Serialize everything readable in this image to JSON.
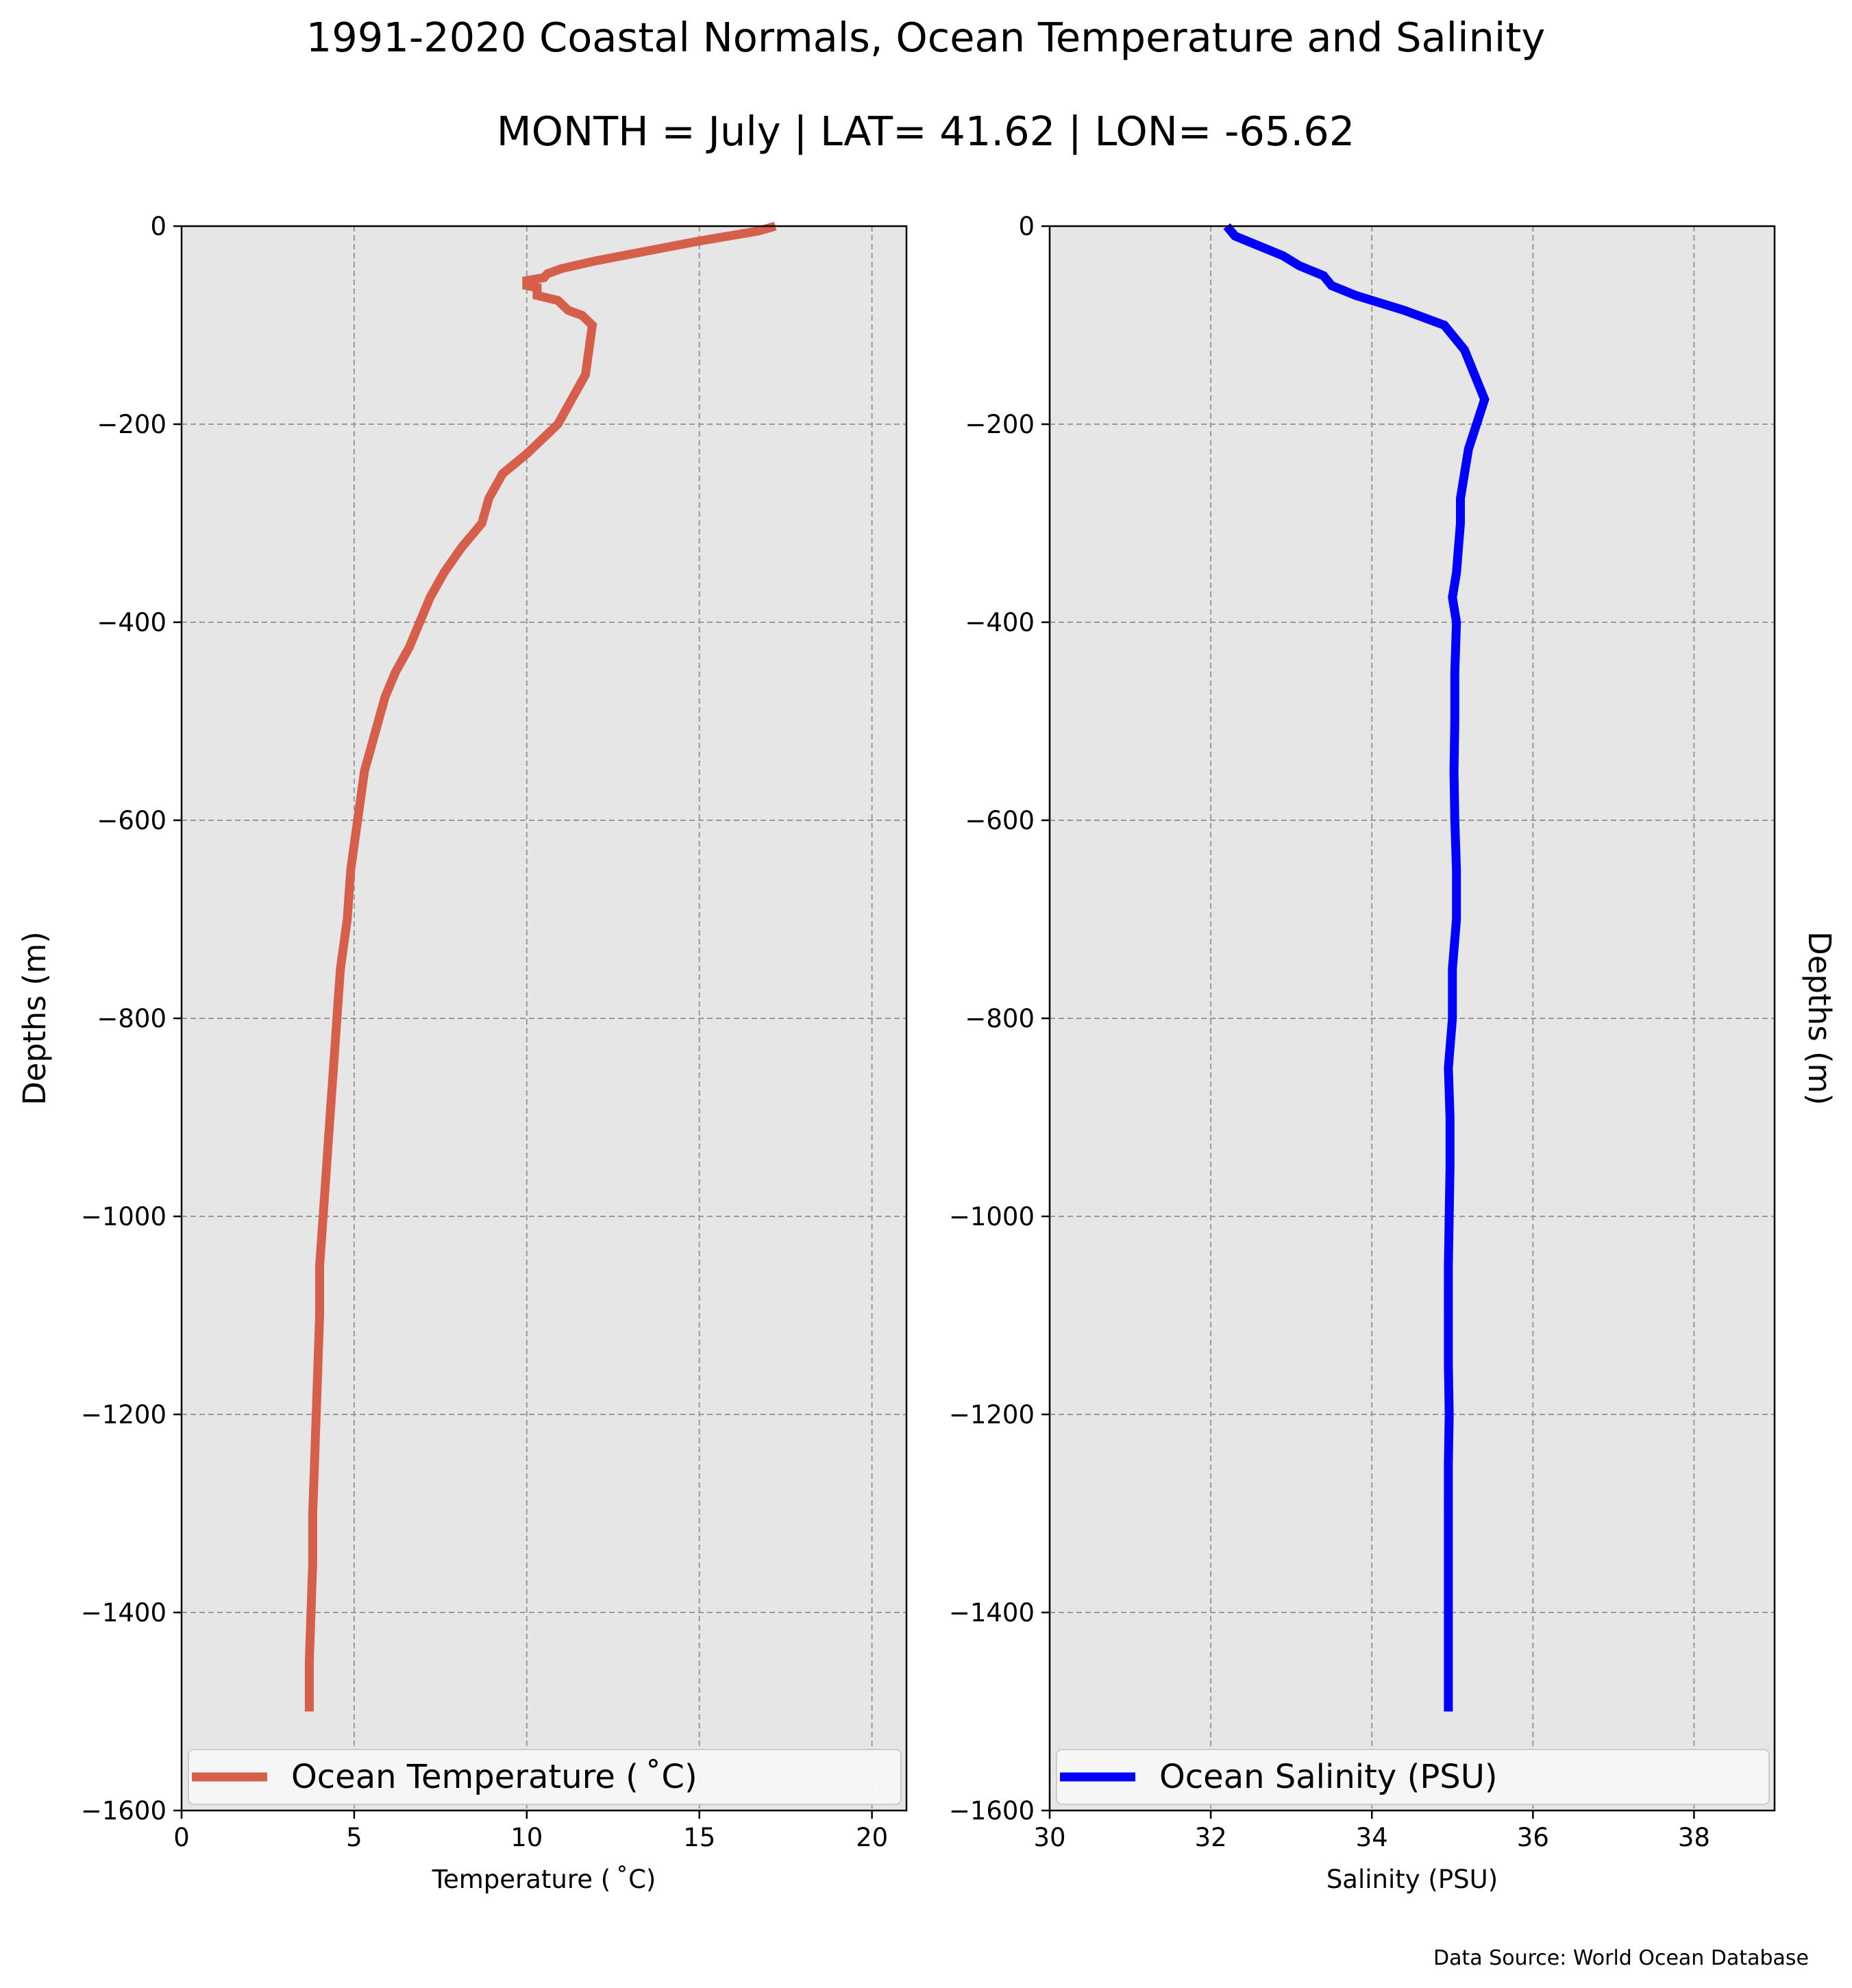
{
  "figure": {
    "title": "1991-2020 Coastal Normals, Ocean Temperature and Salinity",
    "subtitle": "MONTH = July | LAT= 41.62 | LON= -65.62",
    "source": "Data Source: World Ocean Database",
    "plot_background": "#e6e6e6"
  },
  "chart_data": [
    {
      "type": "line",
      "id": "temperature",
      "xlabel": "Temperature ($^\\circ$C)",
      "xlabel_display": "Temperature ( ˚C)",
      "ylabel": "Depths (m)",
      "xlim": [
        0,
        21
      ],
      "ylim": [
        -1600,
        0
      ],
      "xticks": [
        0,
        5,
        10,
        15,
        20
      ],
      "xtick_labels": [
        "0",
        "5",
        "10",
        "15",
        "20"
      ],
      "yticks": [
        0,
        -200,
        -400,
        -600,
        -800,
        -1000,
        -1200,
        -1400,
        -1600
      ],
      "ytick_labels": [
        "0",
        "−200",
        "−400",
        "−600",
        "−800",
        "−1000",
        "−1200",
        "−1400",
        "−1600"
      ],
      "grid": true,
      "legend_position": "lower-center",
      "series": [
        {
          "name": "Ocean Temperature ( ˚C)",
          "color": "#d65f4c",
          "points": [
            [
              17.2,
              0
            ],
            [
              16.7,
              -5
            ],
            [
              15.0,
              -15
            ],
            [
              13.5,
              -25
            ],
            [
              12.0,
              -35
            ],
            [
              11.0,
              -43
            ],
            [
              10.6,
              -48
            ],
            [
              10.5,
              -52
            ],
            [
              10.0,
              -55
            ],
            [
              10.0,
              -60
            ],
            [
              10.3,
              -62
            ],
            [
              10.3,
              -70
            ],
            [
              10.9,
              -75
            ],
            [
              11.2,
              -85
            ],
            [
              11.6,
              -90
            ],
            [
              11.9,
              -100
            ],
            [
              11.7,
              -150
            ],
            [
              11.3,
              -175
            ],
            [
              10.9,
              -200
            ],
            [
              10.0,
              -230
            ],
            [
              9.3,
              -250
            ],
            [
              8.9,
              -275
            ],
            [
              8.7,
              -300
            ],
            [
              8.1,
              -325
            ],
            [
              7.6,
              -350
            ],
            [
              7.2,
              -375
            ],
            [
              6.9,
              -400
            ],
            [
              6.6,
              -425
            ],
            [
              6.2,
              -450
            ],
            [
              5.9,
              -475
            ],
            [
              5.5,
              -525
            ],
            [
              5.3,
              -550
            ],
            [
              5.1,
              -600
            ],
            [
              4.9,
              -650
            ],
            [
              4.8,
              -700
            ],
            [
              4.6,
              -750
            ],
            [
              4.5,
              -800
            ],
            [
              4.4,
              -850
            ],
            [
              4.3,
              -900
            ],
            [
              4.2,
              -950
            ],
            [
              4.1,
              -1000
            ],
            [
              4.0,
              -1050
            ],
            [
              4.0,
              -1100
            ],
            [
              3.95,
              -1150
            ],
            [
              3.9,
              -1200
            ],
            [
              3.85,
              -1250
            ],
            [
              3.8,
              -1300
            ],
            [
              3.8,
              -1350
            ],
            [
              3.75,
              -1400
            ],
            [
              3.7,
              -1450
            ],
            [
              3.7,
              -1500
            ]
          ]
        }
      ]
    },
    {
      "type": "line",
      "id": "salinity",
      "xlabel": "Salinity (PSU)",
      "ylabel": "Depths (m)",
      "xlim": [
        30,
        39
      ],
      "ylim": [
        -1600,
        0
      ],
      "xticks": [
        30,
        32,
        34,
        36,
        38
      ],
      "xtick_labels": [
        "30",
        "32",
        "34",
        "36",
        "38"
      ],
      "yticks": [
        0,
        -200,
        -400,
        -600,
        -800,
        -1000,
        -1200,
        -1400,
        -1600
      ],
      "ytick_labels": [
        "0",
        "−200",
        "−400",
        "−600",
        "−800",
        "−1000",
        "−1200",
        "−1400",
        "−1600"
      ],
      "grid": true,
      "legend_position": "lower-center",
      "series": [
        {
          "name": "Ocean Salinity (PSU)",
          "color": "#0000ff",
          "points": [
            [
              32.2,
              0
            ],
            [
              32.3,
              -10
            ],
            [
              32.6,
              -20
            ],
            [
              32.9,
              -30
            ],
            [
              33.1,
              -40
            ],
            [
              33.4,
              -50
            ],
            [
              33.5,
              -60
            ],
            [
              33.8,
              -70
            ],
            [
              34.2,
              -80
            ],
            [
              34.4,
              -85
            ],
            [
              34.9,
              -100
            ],
            [
              35.15,
              -125
            ],
            [
              35.4,
              -175
            ],
            [
              35.2,
              -225
            ],
            [
              35.1,
              -275
            ],
            [
              35.1,
              -300
            ],
            [
              35.05,
              -350
            ],
            [
              35.0,
              -375
            ],
            [
              35.05,
              -400
            ],
            [
              35.03,
              -450
            ],
            [
              35.03,
              -500
            ],
            [
              35.02,
              -550
            ],
            [
              35.03,
              -600
            ],
            [
              35.05,
              -650
            ],
            [
              35.05,
              -700
            ],
            [
              35.0,
              -750
            ],
            [
              35.0,
              -800
            ],
            [
              34.95,
              -850
            ],
            [
              34.97,
              -900
            ],
            [
              34.97,
              -950
            ],
            [
              34.96,
              -1000
            ],
            [
              34.95,
              -1050
            ],
            [
              34.95,
              -1100
            ],
            [
              34.95,
              -1150
            ],
            [
              34.96,
              -1200
            ],
            [
              34.95,
              -1250
            ],
            [
              34.95,
              -1300
            ],
            [
              34.95,
              -1350
            ],
            [
              34.95,
              -1400
            ],
            [
              34.95,
              -1450
            ],
            [
              34.95,
              -1500
            ]
          ]
        }
      ]
    }
  ]
}
